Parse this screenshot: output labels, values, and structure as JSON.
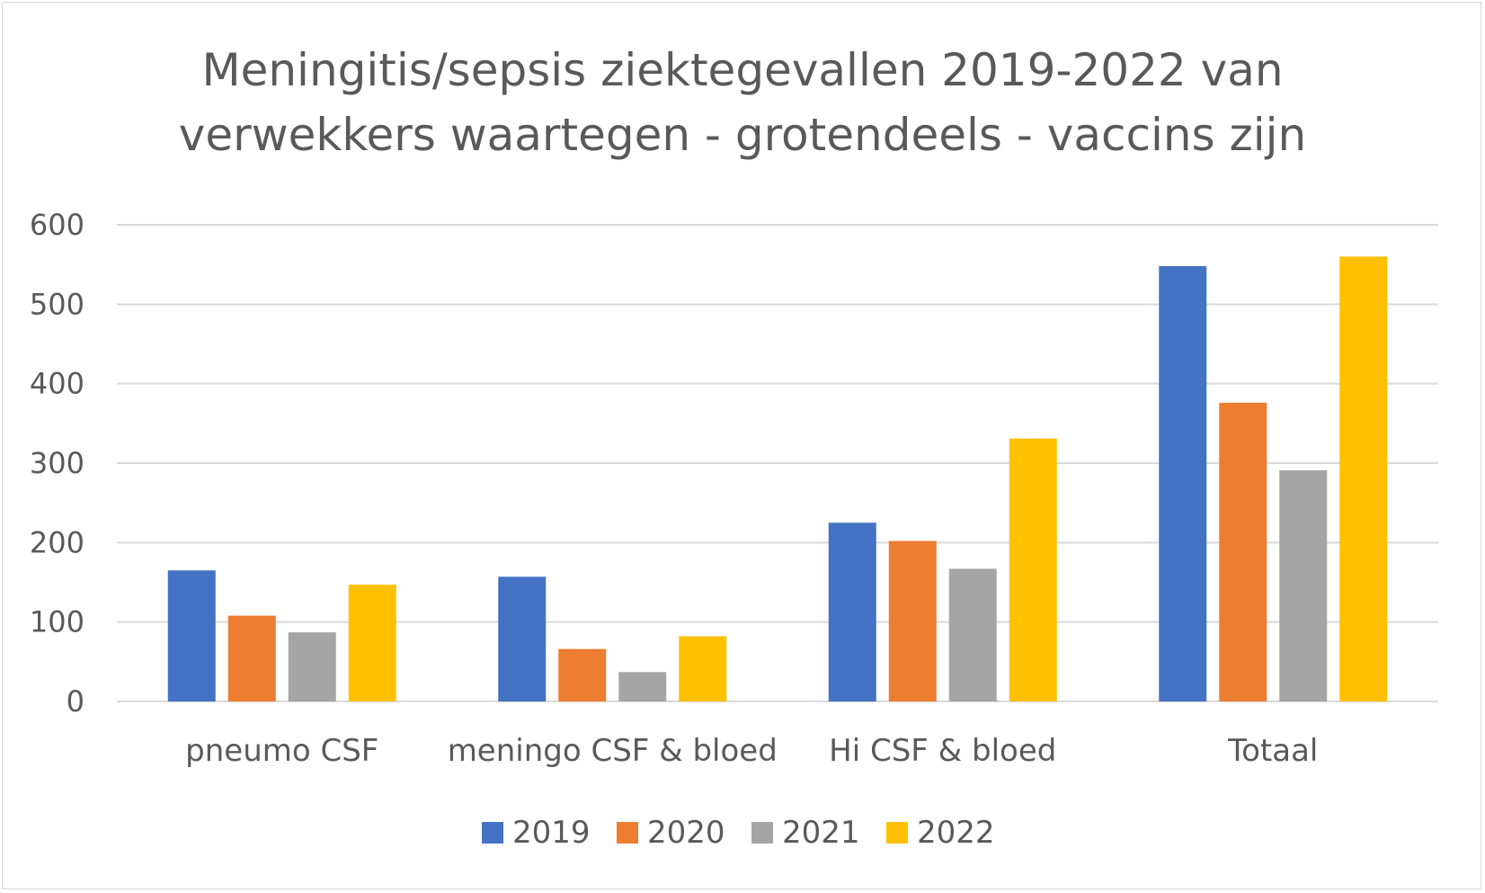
{
  "chart_data": {
    "type": "bar",
    "title": "Meningitis/sepsis ziektegevallen 2019-2022 van verwekkers waartegen - grotendeels - vaccins zijn",
    "title_lines": [
      "Meningitis/sepsis ziektegevallen 2019-2022 van",
      "verwekkers waartegen - grotendeels - vaccins zijn"
    ],
    "categories": [
      "pneumo CSF",
      "meningo CSF & bloed",
      "Hi CSF & bloed",
      "Totaal"
    ],
    "series": [
      {
        "name": "2019",
        "color": "#4472C4",
        "values": [
          165,
          157,
          225,
          548
        ]
      },
      {
        "name": "2020",
        "color": "#ED7D31",
        "values": [
          108,
          66,
          202,
          376
        ]
      },
      {
        "name": "2021",
        "color": "#A5A5A5",
        "values": [
          87,
          37,
          167,
          291
        ]
      },
      {
        "name": "2022",
        "color": "#FFC000",
        "values": [
          147,
          82,
          331,
          560
        ]
      }
    ],
    "yticks": [
      "0",
      "100",
      "200",
      "300",
      "400",
      "500",
      "600"
    ],
    "ylim": [
      0,
      600
    ],
    "xlabel": "",
    "ylabel": "",
    "grid": true,
    "legend_position": "bottom"
  }
}
